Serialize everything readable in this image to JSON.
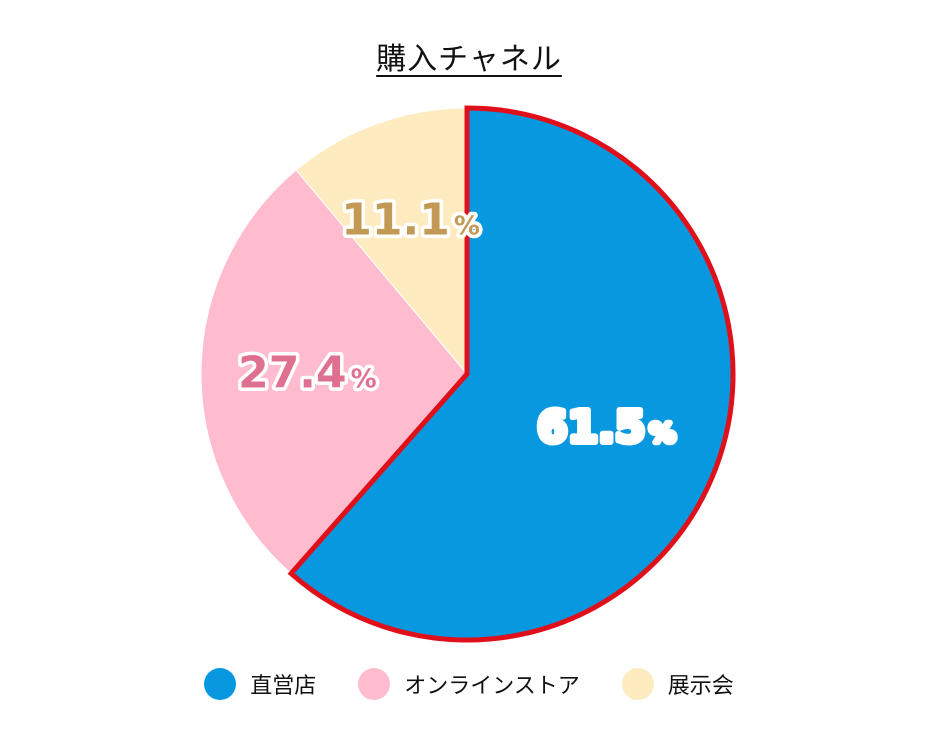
{
  "chart_data": {
    "type": "pie",
    "title": "購入チャネル",
    "slices": [
      {
        "name": "直営店",
        "value": 61.5,
        "label_num": "61.5",
        "label_unit": "%",
        "color": "#0898e0",
        "label_color": "#0898e0",
        "highlight": true
      },
      {
        "name": "オンラインストア",
        "value": 27.4,
        "label_num": "27.4",
        "label_unit": "%",
        "color": "#ffbccf",
        "label_color": "#e0708f",
        "highlight": false
      },
      {
        "name": "展示会",
        "value": 11.1,
        "label_num": "11.1",
        "label_unit": "%",
        "color": "#ffebc0",
        "label_color": "#c39a55",
        "highlight": false
      }
    ],
    "start_angle": "12-o'clock",
    "direction": "clockwise",
    "legend_position": "bottom",
    "highlight_color": "#e0101a"
  }
}
